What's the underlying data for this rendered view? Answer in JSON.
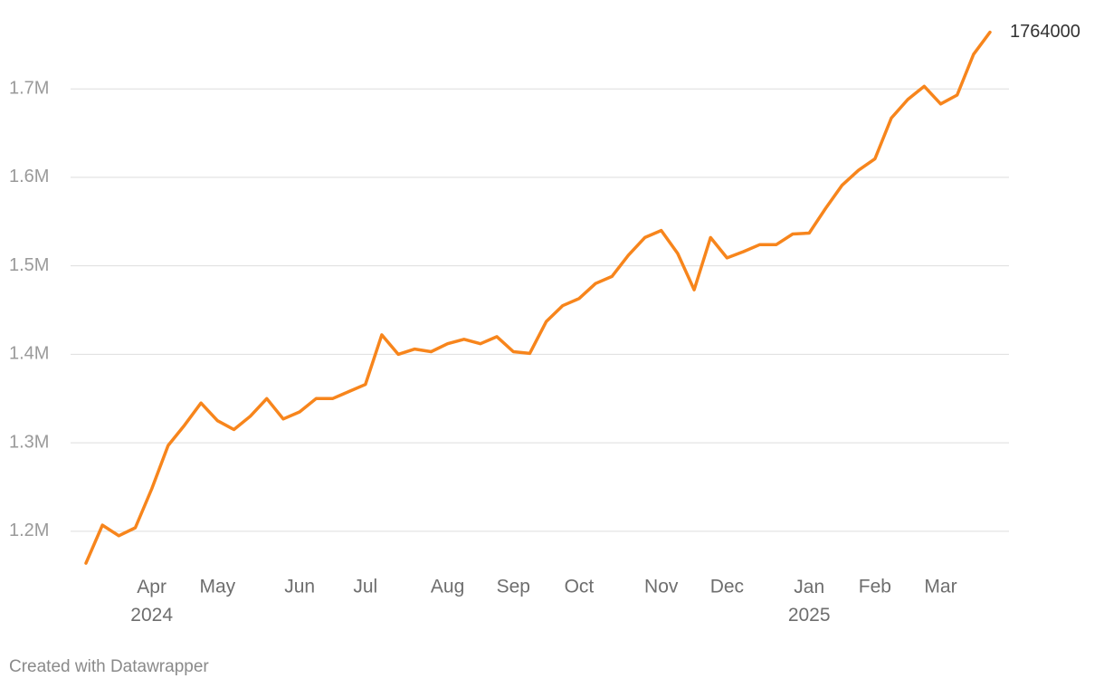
{
  "chart_data": {
    "type": "line",
    "categories": [
      null,
      null,
      null,
      null,
      "Apr\n2024",
      null,
      null,
      null,
      "May",
      null,
      null,
      null,
      null,
      "Jun",
      null,
      null,
      null,
      "Jul",
      null,
      null,
      null,
      null,
      "Aug",
      null,
      null,
      null,
      "Sep",
      null,
      null,
      null,
      "Oct",
      null,
      null,
      null,
      null,
      "Nov",
      null,
      null,
      null,
      "Dec",
      null,
      null,
      null,
      null,
      "Jan\n2025",
      null,
      null,
      null,
      "Feb",
      null,
      null,
      null,
      "Mar",
      null,
      null,
      null
    ],
    "series": [
      {
        "color": "#f7851c",
        "values": [
          1164000,
          1207000,
          1195000,
          1204000,
          1248000,
          1297000,
          1320000,
          1345000,
          1325000,
          1315000,
          1330000,
          1350000,
          1327000,
          1335000,
          1350000,
          1350000,
          1358000,
          1366000,
          1422000,
          1400000,
          1406000,
          1403000,
          1412000,
          1417000,
          1412000,
          1420000,
          1403000,
          1401000,
          1437000,
          1455000,
          1463000,
          1480000,
          1488000,
          1512000,
          1532000,
          1540000,
          1514000,
          1473000,
          1532000,
          1509000,
          1516000,
          1524000,
          1524000,
          1536000,
          1537000,
          1565000,
          1591000,
          1608000,
          1621000,
          1667000,
          1688000,
          1703000,
          1683000,
          1693000,
          1739000,
          1764000
        ]
      }
    ],
    "ylim": [
      1160000,
      1780000
    ],
    "yticks": [
      {
        "value": 1200000,
        "label": "1.2M"
      },
      {
        "value": 1300000,
        "label": "1.3M"
      },
      {
        "value": 1400000,
        "label": "1.4M"
      },
      {
        "value": 1500000,
        "label": "1.5M"
      },
      {
        "value": 1600000,
        "label": "1.6M"
      },
      {
        "value": 1700000,
        "label": "1.7M"
      }
    ],
    "grid": true,
    "credit": "Created with Datawrapper"
  }
}
